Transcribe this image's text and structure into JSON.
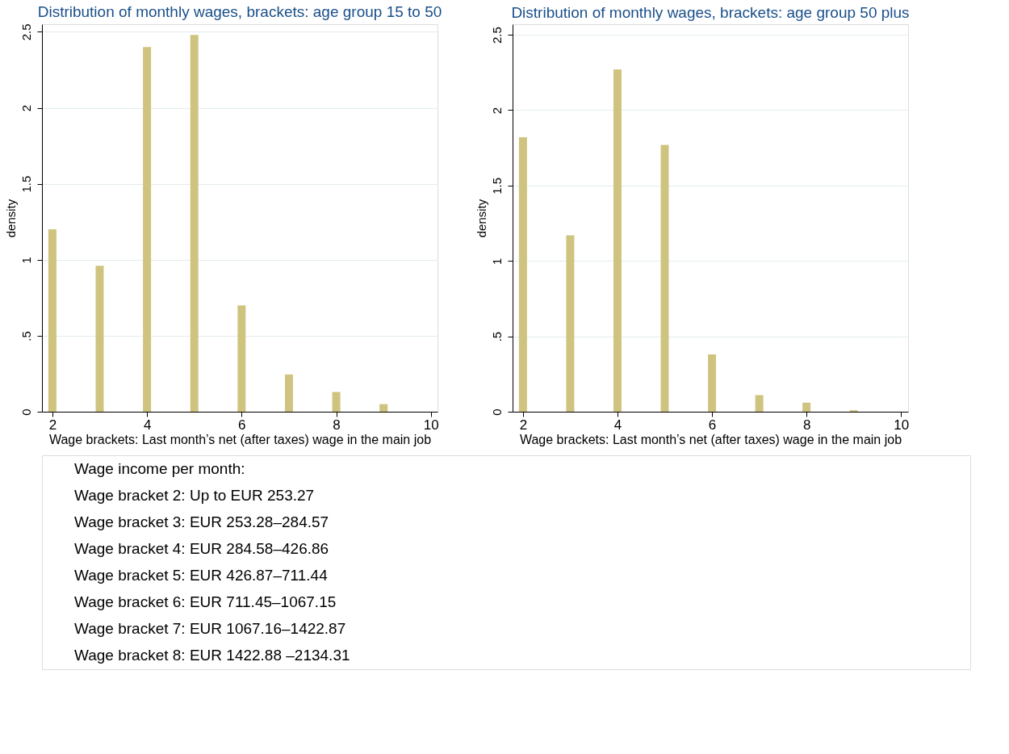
{
  "chart_data": [
    {
      "type": "bar",
      "title": "Distribution of monthly wages, brackets: age group 15 to 50",
      "xlabel": "Wage brackets: Last month’s net (after taxes) wage in the main job",
      "ylabel": "density",
      "x": [
        2,
        3,
        4,
        5,
        6,
        7,
        8,
        9
      ],
      "series": [
        {
          "color": "#cfc47f",
          "values": [
            1.2,
            0.96,
            2.4,
            2.48,
            0.7,
            0.245,
            0.13,
            0.05
          ]
        }
      ],
      "xlim": [
        1.78,
        10.14
      ],
      "xticks": [
        2,
        4,
        6,
        8,
        10
      ],
      "ylim": [
        0,
        2.55
      ],
      "yticks": [
        0,
        {
          "value": 0.5,
          "label": ".5"
        },
        1,
        1.5,
        2,
        2.5
      ],
      "grid": "y",
      "legend": false
    },
    {
      "type": "bar",
      "title": "Distribution of monthly wages, brackets: age group 50 plus",
      "xlabel": "Wage brackets: Last month’s net (after taxes) wage in the main job",
      "ylabel": "density",
      "x": [
        2,
        3,
        4,
        5,
        6,
        7,
        8,
        9
      ],
      "series": [
        {
          "color": "#cfc47f",
          "values": [
            1.82,
            1.17,
            2.27,
            1.77,
            0.38,
            0.11,
            0.06,
            0.01
          ]
        }
      ],
      "xlim": [
        1.78,
        10.15
      ],
      "xticks": [
        2,
        4,
        6,
        8,
        10
      ],
      "ylim": [
        0,
        2.57
      ],
      "yticks": [
        0,
        {
          "value": 0.5,
          "label": ".5"
        },
        1,
        1.5,
        2,
        2.5
      ],
      "grid": "y",
      "legend": false
    },
    {
      "type": "other",
      "title": "Wage income per month:",
      "annotations": [
        "Wage bracket 2:  Up to EUR 253.27",
        "Wage bracket 3:  EUR 253.28–284.57",
        "Wage bracket 4:  EUR 284.58–426.86",
        "Wage bracket 5:  EUR 426.87–711.44",
        "Wage bracket 6:  EUR 711.45–1067.15",
        "Wage bracket 7:  EUR 1067.16–1422.87",
        "Wage bracket 8: EUR 1422.88 –2134.31"
      ]
    }
  ]
}
